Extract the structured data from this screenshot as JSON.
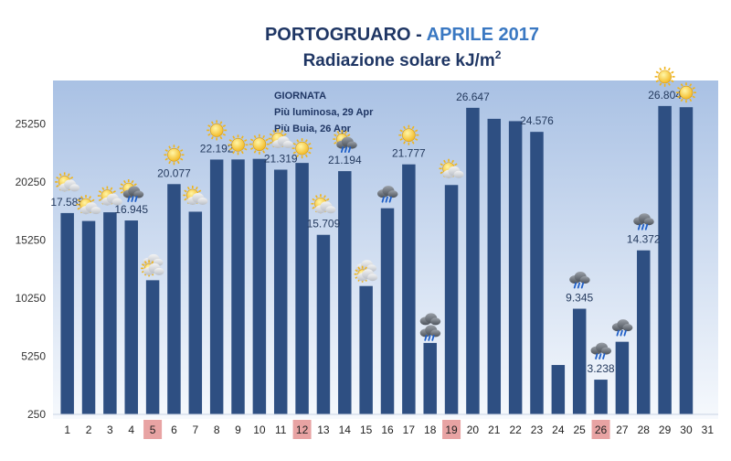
{
  "title": {
    "prefix": "PORTOGRUARO - ",
    "highlight": "APRILE 2017",
    "subtitle_main": "Radiazione solare kJ/m",
    "subtitle_sup": "2"
  },
  "annotation": {
    "heading": "GIORNATA",
    "line1": "Più luminosa, 29 Apr",
    "line2": "Più Buia, 26 Apr"
  },
  "colors": {
    "bar": "#2e4f82",
    "plot_top": "#a9c1e4",
    "plot_bottom": "#f6f9fd",
    "title": "#1f3664",
    "highlight": "#3a78c2",
    "weekend_box": "#e8a3a3",
    "label": "#243a5e"
  },
  "chart_data": {
    "type": "bar",
    "categories": [
      "1",
      "2",
      "3",
      "4",
      "5",
      "6",
      "7",
      "8",
      "9",
      "10",
      "11",
      "12",
      "13",
      "14",
      "15",
      "16",
      "17",
      "18",
      "19",
      "20",
      "21",
      "22",
      "23",
      "24",
      "25",
      "26",
      "27",
      "28",
      "29",
      "30",
      "31"
    ],
    "values": [
      17585,
      16900,
      17650,
      16945,
      11800,
      20077,
      17700,
      22192,
      22200,
      22250,
      21319,
      21900,
      15709,
      21194,
      11300,
      18000,
      21777,
      6400,
      20000,
      26647,
      25700,
      25500,
      24576,
      4500,
      9345,
      3238,
      6500,
      14372,
      26804,
      26700,
      null
    ],
    "data_labels": [
      "17.585",
      "",
      "",
      "16.945",
      "",
      "20.077",
      "",
      "22.192",
      "",
      "",
      "21.319",
      "",
      "15.709",
      "21.194",
      "",
      "",
      "21.777",
      "",
      "",
      "26.647",
      "",
      "",
      "24.576",
      "",
      "9.345",
      "3.238",
      "",
      "14.372",
      "26.804",
      "",
      ""
    ],
    "highlighted_days": [
      "5",
      "12",
      "19",
      "26"
    ],
    "yticks": [
      "250",
      "5250",
      "10250",
      "15250",
      "20250",
      "25250"
    ],
    "ylim": [
      250,
      29000
    ],
    "grid": false,
    "weather_icons": [
      "sun-cloud",
      "sun-cloud",
      "sun-cloud",
      "sun-cloud-rain",
      "cloud-sun",
      "sun",
      "sun-cloud",
      "sun",
      "sun",
      "sun",
      "sun-cloud",
      "sun",
      "sun-cloud",
      "sun-cloud-rain",
      "cloud-sun",
      "rain-cloud",
      "sun",
      "cloud-rain",
      "sun-cloud",
      "",
      "",
      "",
      "",
      "",
      "rain-cloud",
      "rain-cloud",
      "rain-cloud",
      "rain-cloud",
      "sun",
      "sun",
      ""
    ]
  }
}
